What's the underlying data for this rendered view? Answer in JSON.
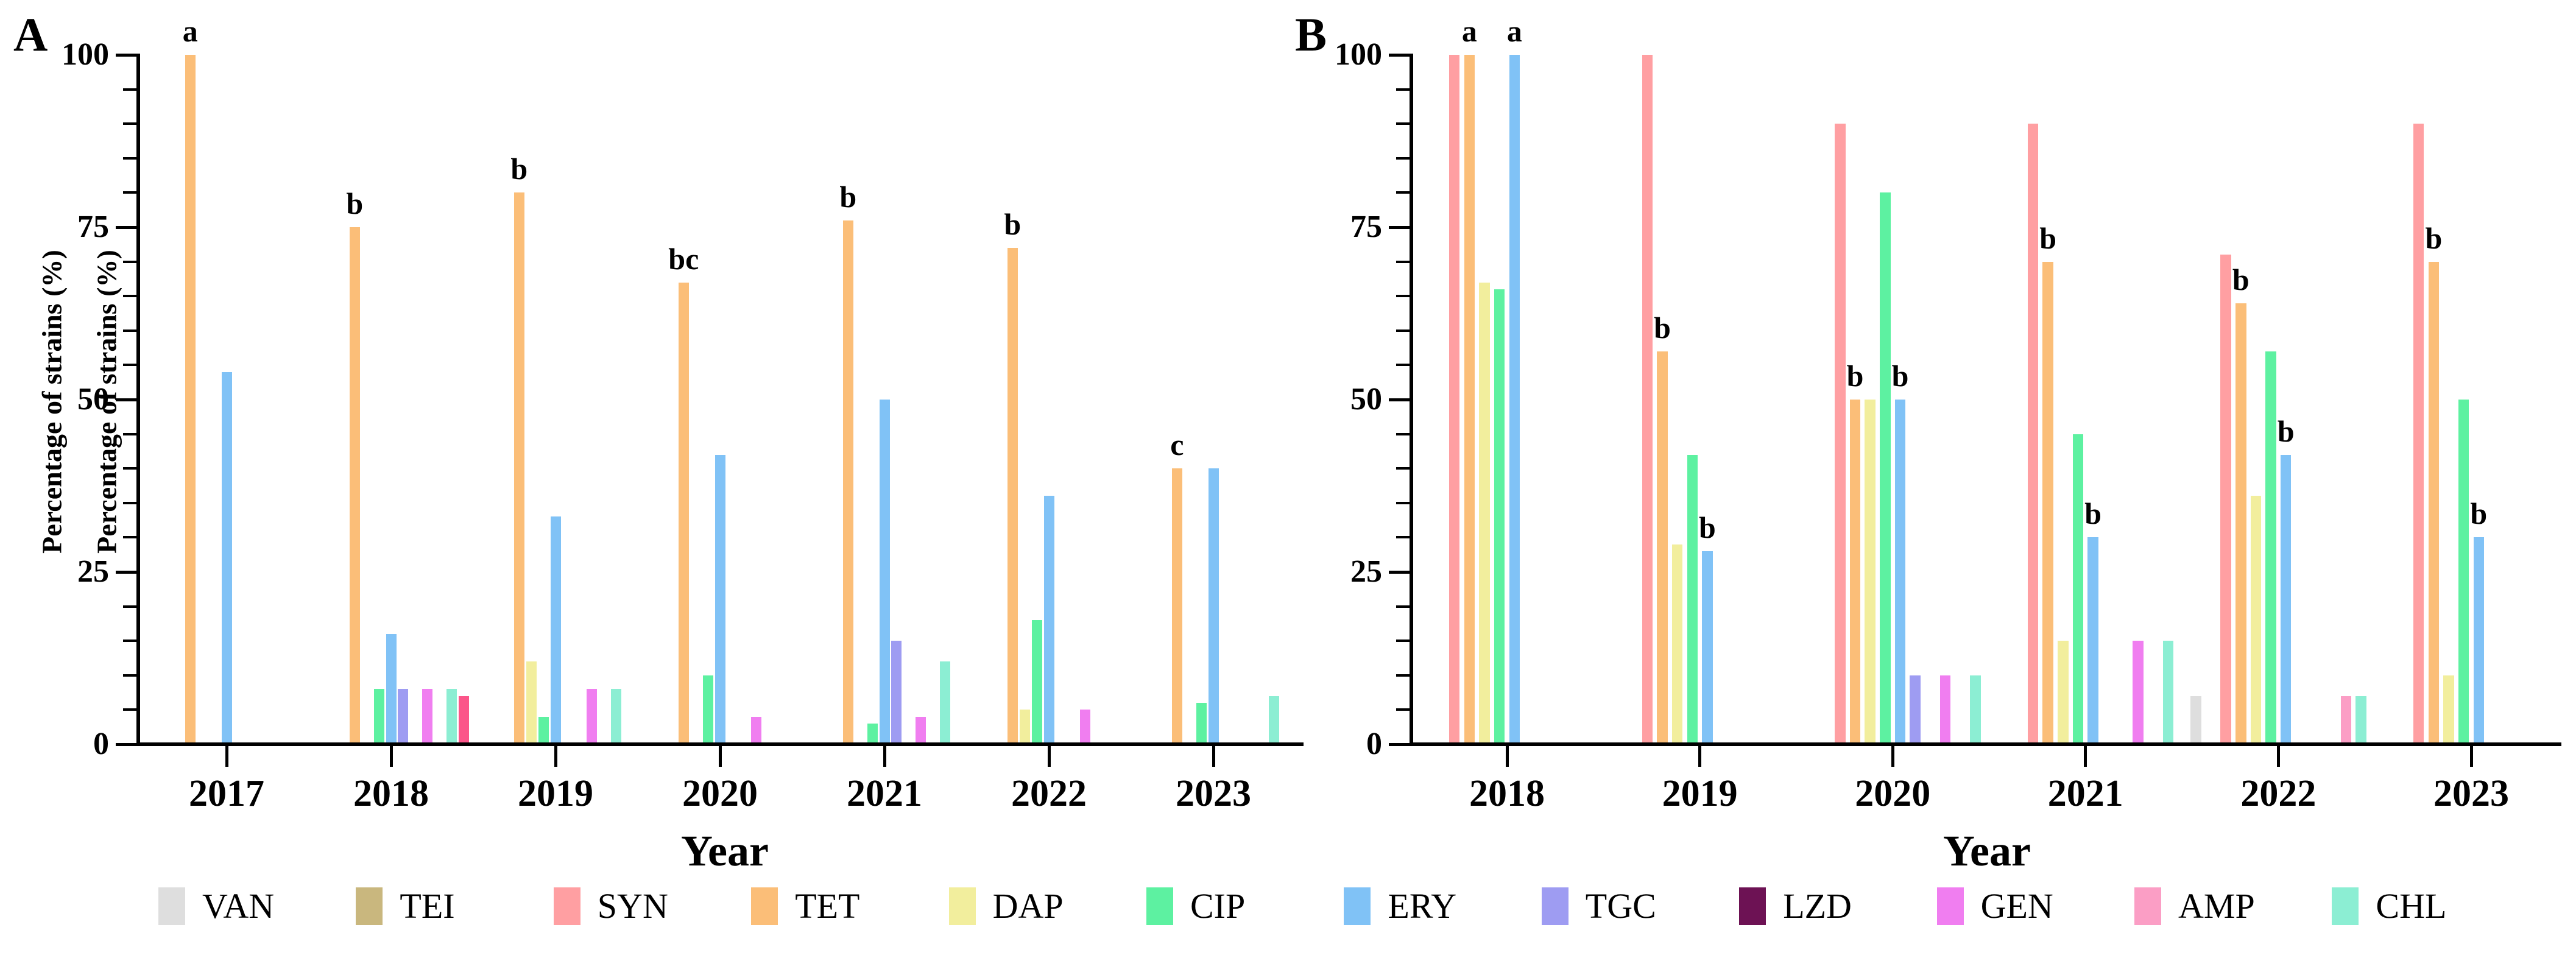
{
  "figure": {
    "panel_a_letter": "A",
    "panel_b_letter": "B",
    "ylabel": "Percentage of strains (%)",
    "xlabel": "Year"
  },
  "legend": {
    "items": [
      {
        "label": "VAN",
        "color": "#DEDEDE"
      },
      {
        "label": "TEI",
        "color": "#C9B77E"
      },
      {
        "label": "SYN",
        "color": "#FF9FA2"
      },
      {
        "label": "TET",
        "color": "#FBBE78"
      },
      {
        "label": "DAP",
        "color": "#F2EE9D"
      },
      {
        "label": "CIP",
        "color": "#5DF1A1"
      },
      {
        "label": "ERY",
        "color": "#80C2F6"
      },
      {
        "label": "TGC",
        "color": "#9E9CF2"
      },
      {
        "label": "LZD",
        "color": "#6D1254"
      },
      {
        "label": "GEN",
        "color": "#F07EF0"
      },
      {
        "label": "AMP",
        "color": "#FB9EC5"
      },
      {
        "label": "CHL",
        "color": "#8CEED3"
      }
    ]
  },
  "chart_data": [
    {
      "type": "bar",
      "panel_label": "A",
      "ylabel": "Percentage of strains (%)",
      "xlabel": "Year",
      "ylim": [
        0,
        100
      ],
      "yticks_major": [
        0,
        25,
        50,
        75,
        100
      ],
      "ytick_minor_step": 5,
      "grid": false,
      "legend_position": "bottom",
      "slot_count": 13,
      "slot_map": {
        "VAN": 1,
        "TEI": 2,
        "SYN": 3,
        "TET": 4,
        "DAP": 5,
        "CIP": 6,
        "ERY": 7,
        "TGC": 8,
        "LZD": 9,
        "GEN": 10,
        "AMP": 11,
        "CHL": 12
      },
      "categories": [
        "2017",
        "2018",
        "2019",
        "2020",
        "2021",
        "2022",
        "2023"
      ],
      "groups": [
        {
          "year": "2017",
          "bars": [
            {
              "ab": "TET",
              "value": 100,
              "letter": "a"
            },
            {
              "ab": "ERY",
              "value": 54
            }
          ]
        },
        {
          "year": "2018",
          "bars": [
            {
              "ab": "TET",
              "value": 75,
              "letter": "b"
            },
            {
              "ab": "CIP",
              "value": 8
            },
            {
              "ab": "ERY",
              "value": 16
            },
            {
              "ab": "TGC",
              "value": 8
            },
            {
              "ab": "GEN",
              "value": 8
            },
            {
              "ab": "CHL",
              "value": 8
            },
            {
              "ab": "AMP",
              "value": 7,
              "slot": 13,
              "color_override": "#FB5589"
            }
          ]
        },
        {
          "year": "2019",
          "bars": [
            {
              "ab": "TET",
              "value": 80,
              "letter": "b"
            },
            {
              "ab": "DAP",
              "value": 12
            },
            {
              "ab": "CIP",
              "value": 4
            },
            {
              "ab": "ERY",
              "value": 33
            },
            {
              "ab": "GEN",
              "value": 8
            },
            {
              "ab": "CHL",
              "value": 8
            }
          ]
        },
        {
          "year": "2020",
          "bars": [
            {
              "ab": "TET",
              "value": 67,
              "letter": "bc"
            },
            {
              "ab": "CIP",
              "value": 10
            },
            {
              "ab": "ERY",
              "value": 42
            },
            {
              "ab": "GEN",
              "value": 4
            }
          ]
        },
        {
          "year": "2021",
          "bars": [
            {
              "ab": "TET",
              "value": 76,
              "letter": "b"
            },
            {
              "ab": "CIP",
              "value": 3
            },
            {
              "ab": "ERY",
              "value": 50
            },
            {
              "ab": "TGC",
              "value": 15
            },
            {
              "ab": "GEN",
              "value": 4
            },
            {
              "ab": "CHL",
              "value": 12
            }
          ]
        },
        {
          "year": "2022",
          "bars": [
            {
              "ab": "TET",
              "value": 72,
              "letter": "b"
            },
            {
              "ab": "DAP",
              "value": 5
            },
            {
              "ab": "CIP",
              "value": 18
            },
            {
              "ab": "ERY",
              "value": 36
            },
            {
              "ab": "GEN",
              "value": 5
            }
          ]
        },
        {
          "year": "2023",
          "bars": [
            {
              "ab": "TET",
              "value": 40,
              "letter": "c"
            },
            {
              "ab": "CIP",
              "value": 6
            },
            {
              "ab": "ERY",
              "value": 40
            },
            {
              "ab": "CHL",
              "value": 7
            }
          ]
        }
      ]
    },
    {
      "type": "bar",
      "panel_label": "B",
      "ylabel": "Percentage of strains (%)",
      "xlabel": "Year",
      "ylim": [
        0,
        100
      ],
      "yticks_major": [
        0,
        25,
        50,
        75,
        100
      ],
      "ytick_minor_step": 5,
      "grid": false,
      "legend_position": "bottom",
      "slot_count": 12,
      "slot_map": {
        "VAN": 1,
        "TEI": 2,
        "SYN": 3,
        "TET": 4,
        "DAP": 5,
        "CIP": 6,
        "ERY": 7,
        "TGC": 8,
        "LZD": 9,
        "GEN": 10,
        "AMP": 11,
        "CHL": 12
      },
      "categories": [
        "2018",
        "2019",
        "2020",
        "2021",
        "2022",
        "2023"
      ],
      "groups": [
        {
          "year": "2018",
          "bars": [
            {
              "ab": "SYN",
              "value": 100
            },
            {
              "ab": "TET",
              "value": 100,
              "letter": "a"
            },
            {
              "ab": "DAP",
              "value": 67
            },
            {
              "ab": "CIP",
              "value": 66
            },
            {
              "ab": "ERY",
              "value": 100,
              "letter": "a"
            }
          ]
        },
        {
          "year": "2019",
          "bars": [
            {
              "ab": "SYN",
              "value": 100
            },
            {
              "ab": "TET",
              "value": 57,
              "letter": "b"
            },
            {
              "ab": "DAP",
              "value": 29
            },
            {
              "ab": "CIP",
              "value": 42
            },
            {
              "ab": "ERY",
              "value": 28,
              "letter": "b"
            }
          ]
        },
        {
          "year": "2020",
          "bars": [
            {
              "ab": "SYN",
              "value": 90
            },
            {
              "ab": "TET",
              "value": 50,
              "letter": "b"
            },
            {
              "ab": "DAP",
              "value": 50
            },
            {
              "ab": "CIP",
              "value": 80
            },
            {
              "ab": "ERY",
              "value": 50,
              "letter": "b"
            },
            {
              "ab": "TGC",
              "value": 10
            },
            {
              "ab": "GEN",
              "value": 10
            },
            {
              "ab": "CHL",
              "value": 10
            }
          ]
        },
        {
          "year": "2021",
          "bars": [
            {
              "ab": "SYN",
              "value": 90
            },
            {
              "ab": "TET",
              "value": 70,
              "letter": "b"
            },
            {
              "ab": "DAP",
              "value": 15
            },
            {
              "ab": "CIP",
              "value": 45
            },
            {
              "ab": "ERY",
              "value": 30,
              "letter": "b"
            },
            {
              "ab": "GEN",
              "value": 15
            },
            {
              "ab": "CHL",
              "value": 15
            }
          ]
        },
        {
          "year": "2022",
          "bars": [
            {
              "ab": "VAN",
              "value": 7
            },
            {
              "ab": "SYN",
              "value": 71
            },
            {
              "ab": "TET",
              "value": 64,
              "letter": "b"
            },
            {
              "ab": "DAP",
              "value": 36
            },
            {
              "ab": "CIP",
              "value": 57
            },
            {
              "ab": "ERY",
              "value": 42,
              "letter": "b"
            },
            {
              "ab": "AMP",
              "value": 7
            },
            {
              "ab": "CHL",
              "value": 7
            }
          ]
        },
        {
          "year": "2023",
          "bars": [
            {
              "ab": "SYN",
              "value": 90
            },
            {
              "ab": "TET",
              "value": 70,
              "letter": "b"
            },
            {
              "ab": "DAP",
              "value": 10
            },
            {
              "ab": "CIP",
              "value": 50
            },
            {
              "ab": "ERY",
              "value": 30,
              "letter": "b"
            }
          ]
        }
      ]
    }
  ]
}
